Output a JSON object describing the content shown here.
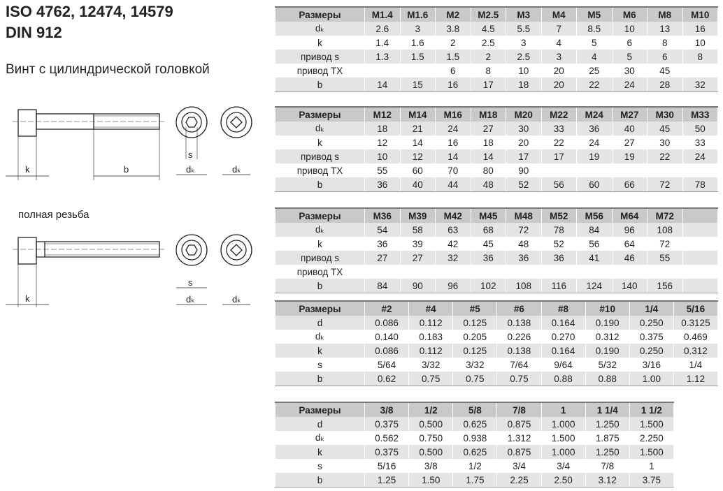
{
  "title_line1": "ISO 4762, 12474, 14579",
  "title_line2": "DIN 912",
  "subtitle": "Винт с цилиндрической головкой",
  "full_thread_label": "полная резьба",
  "drawing_labels": {
    "k": "k",
    "b": "b",
    "s": "s",
    "dk": "dₖ"
  },
  "tables": [
    {
      "headers": [
        "Размеры",
        "M1.4",
        "M1.6",
        "M2",
        "M2.5",
        "M3",
        "M4",
        "M5",
        "M6",
        "M8",
        "M10"
      ],
      "rows": [
        [
          "dₖ",
          "2.6",
          "3",
          "3.8",
          "4.5",
          "5.5",
          "7",
          "8.5",
          "10",
          "13",
          "16"
        ],
        [
          "k",
          "1.4",
          "1.6",
          "2",
          "2.5",
          "3",
          "4",
          "5",
          "6",
          "8",
          "10"
        ],
        [
          "привод s",
          "1.3",
          "1.5",
          "1.5",
          "2",
          "2.5",
          "3",
          "4",
          "5",
          "6",
          "8"
        ],
        [
          "привод TX",
          "",
          "",
          "6",
          "8",
          "10",
          "20",
          "25",
          "30",
          "45",
          ""
        ],
        [
          "b",
          "14",
          "15",
          "16",
          "17",
          "18",
          "20",
          "22",
          "24",
          "28",
          "32"
        ]
      ]
    },
    {
      "headers": [
        "Размеры",
        "M12",
        "M14",
        "M16",
        "M18",
        "M20",
        "M22",
        "M24",
        "M27",
        "M30",
        "M33"
      ],
      "rows": [
        [
          "dₖ",
          "18",
          "21",
          "24",
          "27",
          "30",
          "33",
          "36",
          "40",
          "45",
          "50"
        ],
        [
          "k",
          "12",
          "14",
          "16",
          "18",
          "20",
          "22",
          "24",
          "27",
          "30",
          "33"
        ],
        [
          "привод s",
          "10",
          "12",
          "14",
          "14",
          "17",
          "17",
          "19",
          "19",
          "22",
          "24"
        ],
        [
          "привод TX",
          "55",
          "60",
          "70",
          "80",
          "90",
          "",
          "",
          "",
          "",
          ""
        ],
        [
          "b",
          "36",
          "40",
          "44",
          "48",
          "52",
          "56",
          "60",
          "66",
          "72",
          "78"
        ]
      ]
    },
    {
      "headers": [
        "Размеры",
        "M36",
        "M39",
        "M42",
        "M45",
        "M48",
        "M52",
        "M56",
        "M64",
        "M72",
        ""
      ],
      "rows": [
        [
          "dₖ",
          "54",
          "58",
          "63",
          "68",
          "72",
          "78",
          "84",
          "96",
          "108",
          ""
        ],
        [
          "k",
          "36",
          "39",
          "42",
          "45",
          "48",
          "52",
          "56",
          "64",
          "72",
          ""
        ],
        [
          "привод s",
          "27",
          "27",
          "32",
          "36",
          "36",
          "36",
          "41",
          "46",
          "55",
          ""
        ],
        [
          "привод TX",
          "",
          "",
          "",
          "",
          "",
          "",
          "",
          "",
          "",
          ""
        ],
        [
          "b",
          "84",
          "90",
          "96",
          "102",
          "108",
          "116",
          "124",
          "140",
          "156",
          ""
        ]
      ]
    },
    {
      "headers": [
        "Размеры",
        "#2",
        "#4",
        "#5",
        "#6",
        "#8",
        "#10",
        "1/4",
        "5/16"
      ],
      "rows": [
        [
          "d",
          "0.086",
          "0.112",
          "0.125",
          "0.138",
          "0.164",
          "0.190",
          "0.250",
          "0.3125"
        ],
        [
          "dₖ",
          "0.140",
          "0.183",
          "0.205",
          "0.226",
          "0.270",
          "0.312",
          "0.375",
          "0.469"
        ],
        [
          "k",
          "0.086",
          "0.112",
          "0.125",
          "0.138",
          "0.164",
          "0.190",
          "0.250",
          "0.312"
        ],
        [
          "s",
          "5/64",
          "3/32",
          "3/32",
          "7/64",
          "9/64",
          "5/32",
          "3/16",
          "1/4"
        ],
        [
          "b",
          "0.62",
          "0.75",
          "0.75",
          "0.75",
          "0.88",
          "0.88",
          "1.00",
          "1.12"
        ]
      ]
    },
    {
      "headers": [
        "Размеры",
        "3/8",
        "1/2",
        "5/8",
        "7/8",
        "1",
        "1 1/4",
        "1 1/2"
      ],
      "rows": [
        [
          "d",
          "0.375",
          "0.500",
          "0.625",
          "0.875",
          "1.000",
          "1.250",
          "1.500"
        ],
        [
          "dₖ",
          "0.562",
          "0.750",
          "0.938",
          "1.312",
          "1.500",
          "1.875",
          "2.250"
        ],
        [
          "k",
          "0.375",
          "0.500",
          "0.625",
          "0.875",
          "1.000",
          "1.250",
          "1.500"
        ],
        [
          "s",
          "5/16",
          "3/8",
          "1/2",
          "3/4",
          "3/4",
          "7/8",
          "1"
        ],
        [
          "b",
          "1.25",
          "1.50",
          "1.75",
          "2.25",
          "2.50",
          "3.12",
          "3.75"
        ]
      ]
    }
  ]
}
